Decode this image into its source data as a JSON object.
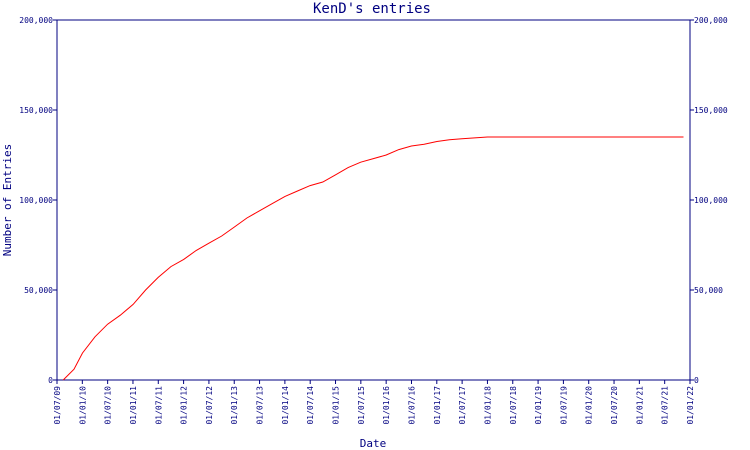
{
  "chart_data": {
    "type": "line",
    "title": "KenD's entries",
    "xlabel": "Date",
    "ylabel": "Number of Entries",
    "ylim": [
      0,
      200000
    ],
    "yticks": [
      0,
      50000,
      100000,
      150000,
      200000
    ],
    "ytick_labels": [
      "0",
      "50,000",
      "100,000",
      "150,000",
      "200,000"
    ],
    "xtick_labels": [
      "01/07/09",
      "01/01/10",
      "01/07/10",
      "01/01/11",
      "01/07/11",
      "01/01/12",
      "01/07/12",
      "01/01/13",
      "01/07/13",
      "01/01/14",
      "01/07/14",
      "01/01/15",
      "01/07/15",
      "01/01/16",
      "01/07/16",
      "01/01/17",
      "01/07/17",
      "01/01/18",
      "01/07/18",
      "01/01/19",
      "01/07/19",
      "01/01/20",
      "01/07/20",
      "01/01/21",
      "01/07/21",
      "01/01/22"
    ],
    "xlim": [
      "2009-07-01",
      "2022-01-01"
    ],
    "grid": false,
    "legend": "none",
    "color": "#ff0000",
    "axis_color": "#000080",
    "series": [
      {
        "x": [
          "2009-08-15",
          "2009-11-01",
          "2010-01-01",
          "2010-04-01",
          "2010-07-01",
          "2010-10-01",
          "2011-01-01",
          "2011-04-01",
          "2011-07-01",
          "2011-10-01",
          "2012-01-01",
          "2012-04-01",
          "2012-07-01",
          "2012-10-01",
          "2013-01-01",
          "2013-04-01",
          "2013-07-01",
          "2013-10-01",
          "2014-01-01",
          "2014-04-01",
          "2014-07-01",
          "2014-10-01",
          "2015-01-01",
          "2015-04-01",
          "2015-07-01",
          "2015-10-01",
          "2016-01-01",
          "2016-04-01",
          "2016-07-01",
          "2016-10-01",
          "2017-01-01",
          "2017-04-01",
          "2017-07-01",
          "2017-10-01",
          "2018-01-01",
          "2019-01-01",
          "2020-01-01",
          "2021-01-01",
          "2021-11-15"
        ],
        "values": [
          0,
          6000,
          15000,
          24000,
          31000,
          36000,
          42000,
          50000,
          57000,
          63000,
          67000,
          72000,
          76000,
          80000,
          85000,
          90000,
          94000,
          98000,
          102000,
          105000,
          108000,
          110000,
          114000,
          118000,
          121000,
          123000,
          125000,
          128000,
          130000,
          131000,
          132500,
          133500,
          134000,
          134500,
          135000,
          135000,
          135000,
          135000,
          135000
        ]
      }
    ]
  }
}
